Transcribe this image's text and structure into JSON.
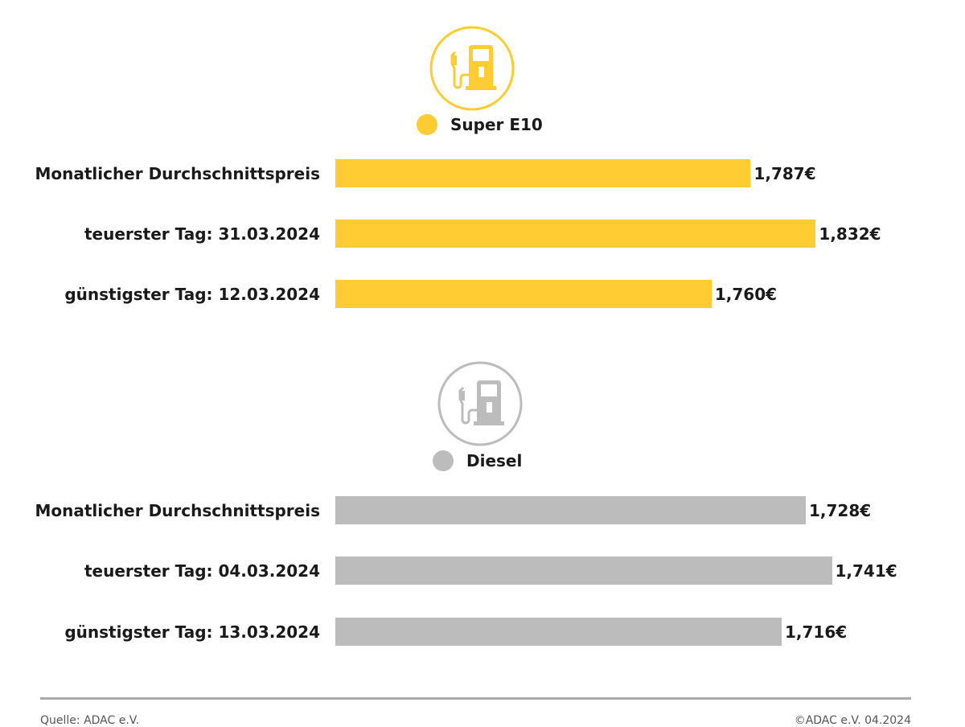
{
  "chart_data": [
    {
      "type": "bar",
      "orientation": "horizontal",
      "title": "Super E10",
      "color": "#FFCC33",
      "icon": "fuel-pump-icon",
      "categories": [
        "Monatlicher Durchschnittspreis",
        "teuerster Tag: 31.03.2024",
        "günstigster Tag: 12.03.2024"
      ],
      "values": [
        1.787,
        1.832,
        1.76
      ],
      "value_labels": [
        "1,787€",
        "1,832€",
        "1,760€"
      ],
      "xlim": [
        1.5,
        1.889
      ]
    },
    {
      "type": "bar",
      "orientation": "horizontal",
      "title": "Diesel",
      "color": "#BDBCBC",
      "icon": "fuel-pump-icon",
      "categories": [
        "Monatlicher Durchschnittspreis",
        "teuerster Tag: 04.03.2024",
        "günstigster Tag: 13.03.2024"
      ],
      "values": [
        1.728,
        1.741,
        1.716
      ],
      "value_labels": [
        "1,728€",
        "1,741€",
        "1,716€"
      ],
      "xlim": [
        1.494,
        1.774
      ]
    }
  ],
  "footer": {
    "source": "Quelle: ADAC e.V.",
    "copyright": "©ADAC e.V. 04.2024"
  }
}
